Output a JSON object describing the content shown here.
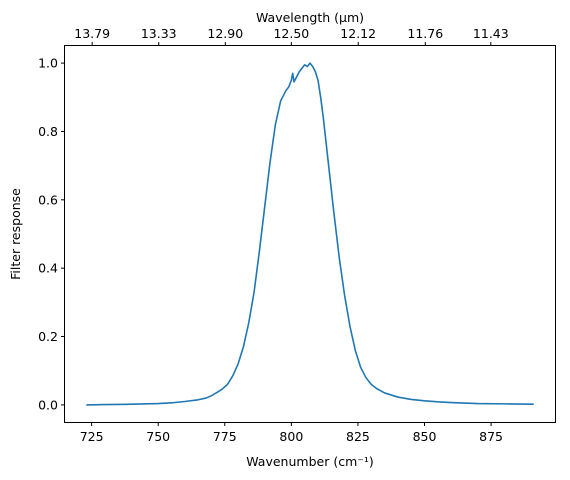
{
  "chart_data": {
    "type": "line",
    "xlabel": "Wavenumber (cm⁻¹)",
    "ylabel": "Filter response",
    "top_xlabel": "Wavelength (μm)",
    "xlim": [
      715,
      899
    ],
    "ylim": [
      -0.05,
      1.05
    ],
    "xticks": [
      725,
      750,
      775,
      800,
      825,
      850,
      875
    ],
    "yticks": [
      0.0,
      0.2,
      0.4,
      0.6,
      0.8,
      1.0
    ],
    "top_ticks": [
      {
        "wavenumber": 725.2,
        "label": "13.79"
      },
      {
        "wavenumber": 750.2,
        "label": "13.33"
      },
      {
        "wavenumber": 775.2,
        "label": "12.90"
      },
      {
        "wavenumber": 800.0,
        "label": "12.50"
      },
      {
        "wavenumber": 825.1,
        "label": "12.12"
      },
      {
        "wavenumber": 850.3,
        "label": "11.76"
      },
      {
        "wavenumber": 874.9,
        "label": "11.43"
      }
    ],
    "grid": false,
    "line_color": "#1f77b4",
    "series": [
      {
        "x": [
          723,
          730,
          740,
          750,
          755,
          760,
          765,
          768,
          770,
          772,
          774,
          776,
          778,
          780,
          782,
          784,
          786,
          788,
          790,
          792,
          794,
          796,
          798,
          799,
          800,
          800.5,
          801,
          802,
          803,
          804,
          805,
          806,
          807,
          808,
          809,
          810,
          811,
          812,
          814,
          816,
          818,
          820,
          822,
          824,
          826,
          828,
          830,
          832,
          835,
          840,
          845,
          850,
          855,
          860,
          870,
          880,
          891
        ],
        "y": [
          0.0,
          0.001,
          0.002,
          0.004,
          0.006,
          0.01,
          0.015,
          0.02,
          0.027,
          0.036,
          0.046,
          0.06,
          0.085,
          0.12,
          0.17,
          0.24,
          0.33,
          0.45,
          0.58,
          0.71,
          0.82,
          0.89,
          0.92,
          0.93,
          0.95,
          0.97,
          0.945,
          0.96,
          0.975,
          0.985,
          0.995,
          0.99,
          1.0,
          0.99,
          0.975,
          0.95,
          0.9,
          0.84,
          0.7,
          0.56,
          0.43,
          0.32,
          0.23,
          0.16,
          0.11,
          0.08,
          0.06,
          0.048,
          0.035,
          0.023,
          0.016,
          0.012,
          0.009,
          0.007,
          0.004,
          0.003,
          0.002
        ]
      }
    ]
  }
}
